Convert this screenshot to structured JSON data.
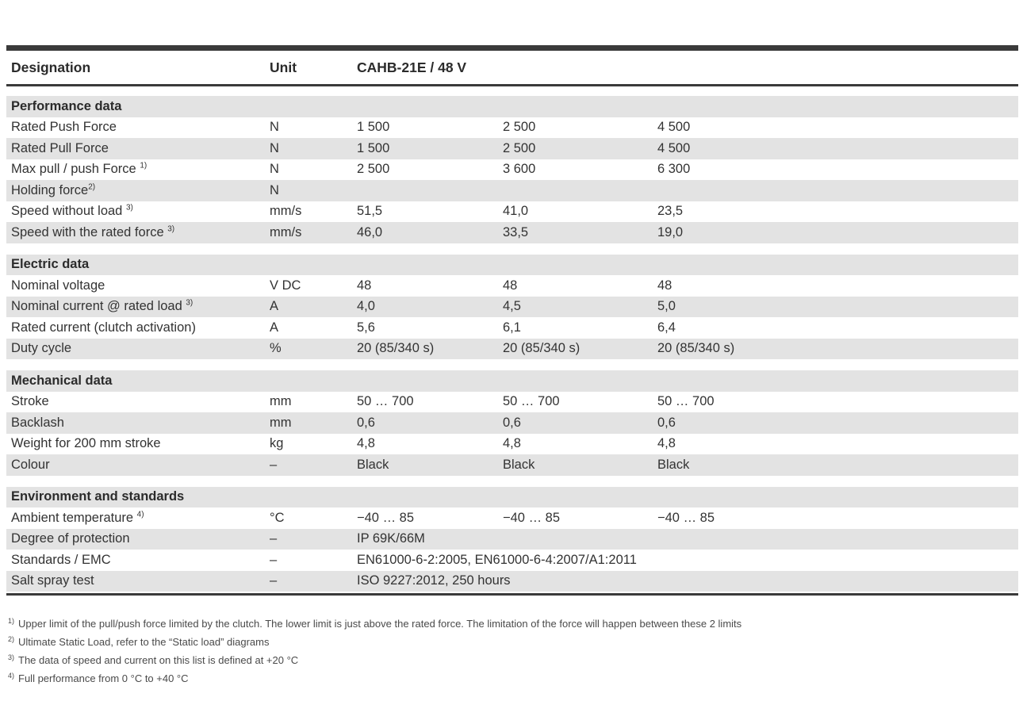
{
  "table": {
    "header": {
      "designation": "Designation",
      "unit": "Unit",
      "model": "CAHB-21E / 48 V"
    },
    "sections": [
      {
        "title": "Performance data",
        "rows": [
          {
            "label": "Rated Push Force",
            "sup": "",
            "unit": "N",
            "values": [
              "1 500",
              "2 500",
              "4 500"
            ]
          },
          {
            "label": "Rated Pull Force",
            "sup": "",
            "unit": "N",
            "values": [
              "1 500",
              "2 500",
              "4 500"
            ]
          },
          {
            "label": "Max pull / push Force ",
            "sup": "1)",
            "unit": "N",
            "values": [
              "2 500",
              "3 600",
              "6 300"
            ]
          },
          {
            "label": "Holding force",
            "sup": "2)",
            "unit": "N",
            "values": [
              "",
              "",
              ""
            ]
          },
          {
            "label": "Speed without load ",
            "sup": "3)",
            "unit": "mm/s",
            "values": [
              "51,5",
              "41,0",
              "23,5"
            ]
          },
          {
            "label": "Speed with the rated force ",
            "sup": "3)",
            "unit": "mm/s",
            "values": [
              "46,0",
              "33,5",
              "19,0"
            ]
          }
        ]
      },
      {
        "title": "Electric data",
        "rows": [
          {
            "label": "Nominal voltage",
            "sup": "",
            "unit": "V DC",
            "values": [
              "48",
              "48",
              "48"
            ]
          },
          {
            "label": "Nominal current @ rated load ",
            "sup": "3)",
            "unit": "A",
            "values": [
              "4,0",
              "4,5",
              "5,0"
            ]
          },
          {
            "label": "Rated current (clutch activation)",
            "sup": "",
            "unit": "A",
            "values": [
              "5,6",
              "6,1",
              "6,4"
            ]
          },
          {
            "label": "Duty cycle",
            "sup": "",
            "unit": "%",
            "values": [
              "20 (85/340 s)",
              "20 (85/340 s)",
              "20 (85/340 s)"
            ]
          }
        ]
      },
      {
        "title": "Mechanical data",
        "rows": [
          {
            "label": "Stroke",
            "sup": "",
            "unit": "mm",
            "values": [
              "50 … 700",
              "50 … 700",
              "50 … 700"
            ]
          },
          {
            "label": "Backlash",
            "sup": "",
            "unit": "mm",
            "values": [
              "0,6",
              "0,6",
              "0,6"
            ]
          },
          {
            "label": "Weight for 200 mm stroke",
            "sup": "",
            "unit": "kg",
            "values": [
              "4,8",
              "4,8",
              "4,8"
            ]
          },
          {
            "label": "Colour",
            "sup": "",
            "unit": "–",
            "values": [
              "Black",
              "Black",
              "Black"
            ]
          }
        ]
      },
      {
        "title": "Environment and standards",
        "rows": [
          {
            "label": "Ambient temperature ",
            "sup": "4)",
            "unit": "°C",
            "values": [
              "−40 … 85",
              "−40 … 85",
              "−40 … 85"
            ]
          },
          {
            "label": "Degree of protection",
            "sup": "",
            "unit": "–",
            "span": true,
            "values": [
              "IP 69K/66M"
            ]
          },
          {
            "label": "Standards / EMC",
            "sup": "",
            "unit": "–",
            "span": true,
            "values": [
              "EN61000-6-2:2005, EN61000-6-4:2007/A1:2011"
            ]
          },
          {
            "label": "Salt spray test",
            "sup": "",
            "unit": "–",
            "span": true,
            "values": [
              "ISO 9227:2012, 250 hours"
            ]
          }
        ]
      }
    ],
    "footnotes": [
      {
        "marker": "1)",
        "text": "Upper limit of the pull/push force limited by the clutch. The lower limit is just above the rated force. The limitation of the force will happen between these 2 limits"
      },
      {
        "marker": "2)",
        "text": "Ultimate Static Load, refer to the “Static load” diagrams"
      },
      {
        "marker": "3)",
        "text": "The data of speed and current on this list  is defined at +20 °C"
      },
      {
        "marker": "4)",
        "text": "Full performance from 0 °C to +40 °C"
      }
    ]
  }
}
